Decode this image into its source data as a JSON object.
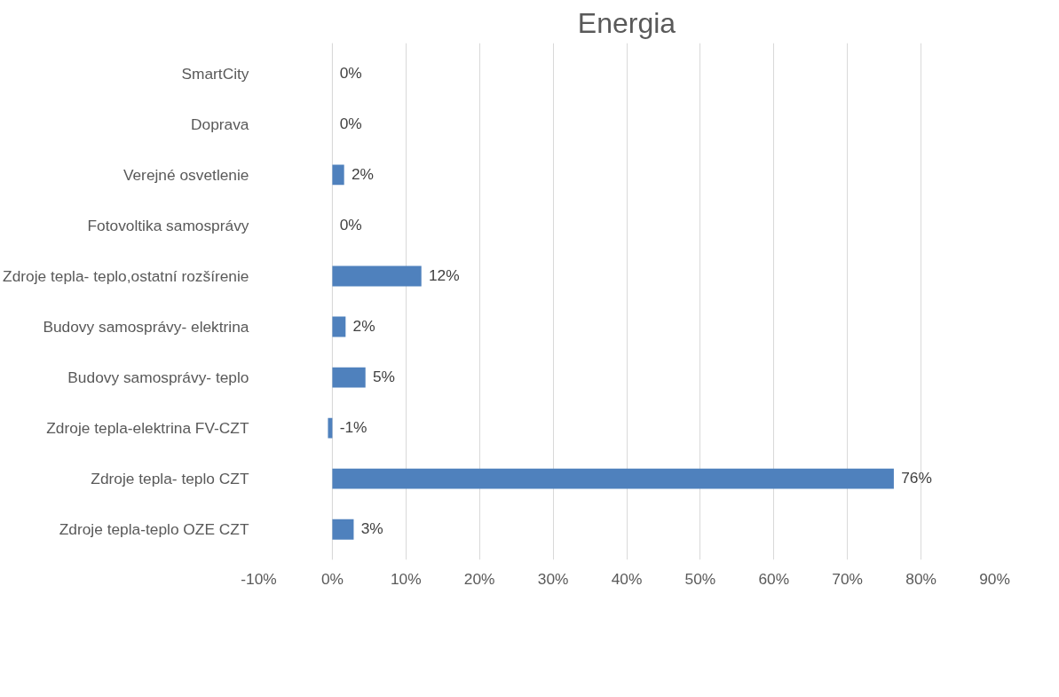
{
  "chart_data": {
    "type": "bar",
    "orientation": "horizontal",
    "title": "Energia",
    "categories": [
      "SmartCity",
      "Doprava",
      "Verejné osvetlenie",
      "Fotovoltika samosprávy",
      "Zdroje tepla- teplo,ostatní rozšírenie",
      "Budovy samosprávy- elektrina",
      "Budovy samosprávy- teplo",
      "Zdroje tepla-elektrina FV-CZT",
      "Zdroje tepla- teplo CZT",
      "Zdroje tepla-teplo OZE CZT"
    ],
    "values": [
      0,
      0,
      1.6,
      0,
      12.1,
      1.8,
      4.5,
      -0.6,
      76.3,
      2.9
    ],
    "value_labels": [
      "0%",
      "0%",
      "2%",
      "0%",
      "12%",
      "2%",
      "5%",
      "-1%",
      "76%",
      "3%"
    ],
    "color": "#4f81bd",
    "xlim": [
      -10,
      90
    ],
    "xticks": [
      {
        "value": -10,
        "label": "-10%"
      },
      {
        "value": 0,
        "label": "0%"
      },
      {
        "value": 10,
        "label": "10%"
      },
      {
        "value": 20,
        "label": "20%"
      },
      {
        "value": 30,
        "label": "30%"
      },
      {
        "value": 40,
        "label": "40%"
      },
      {
        "value": 50,
        "label": "50%"
      },
      {
        "value": 60,
        "label": "60%"
      },
      {
        "value": 70,
        "label": "70%"
      },
      {
        "value": 80,
        "label": "80%"
      },
      {
        "value": 90,
        "label": "90%"
      }
    ],
    "grid": "x"
  }
}
